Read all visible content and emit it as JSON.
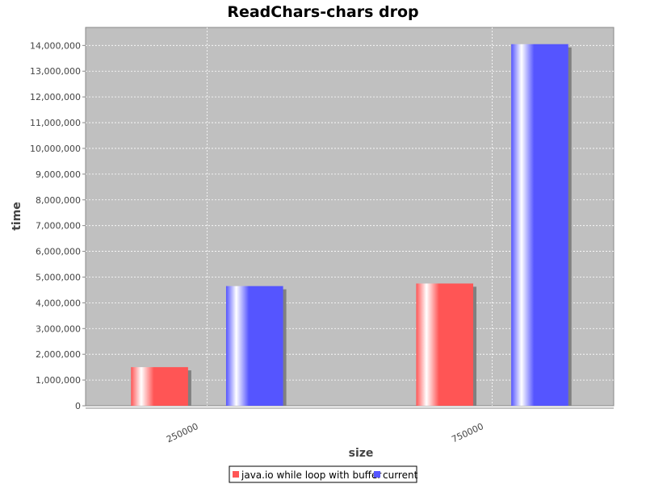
{
  "chart_data": {
    "type": "bar",
    "title": "ReadChars-chars drop",
    "xlabel": "size",
    "ylabel": "time",
    "categories": [
      "250000",
      "750000"
    ],
    "series": [
      {
        "name": "java.io while loop with buffer",
        "values": [
          1500000,
          4750000
        ],
        "color": "#ff5555"
      },
      {
        "name": "current",
        "values": [
          4650000,
          14050000
        ],
        "color": "#5555ff"
      }
    ],
    "ylim": [
      0,
      14700000
    ],
    "y_ticks": [
      0,
      1000000,
      2000000,
      3000000,
      4000000,
      5000000,
      6000000,
      7000000,
      8000000,
      9000000,
      10000000,
      11000000,
      12000000,
      13000000,
      14000000
    ],
    "y_tick_labels": [
      "0",
      "1,000,000",
      "2,000,000",
      "3,000,000",
      "4,000,000",
      "5,000,000",
      "6,000,000",
      "7,000,000",
      "8,000,000",
      "9,000,000",
      "10,000,000",
      "11,000,000",
      "12,000,000",
      "13,000,000",
      "14,000,000"
    ],
    "grid": true,
    "legend_position": "bottom-center",
    "plot_background": "#c0c0c0",
    "grid_color": "#ffffff"
  }
}
